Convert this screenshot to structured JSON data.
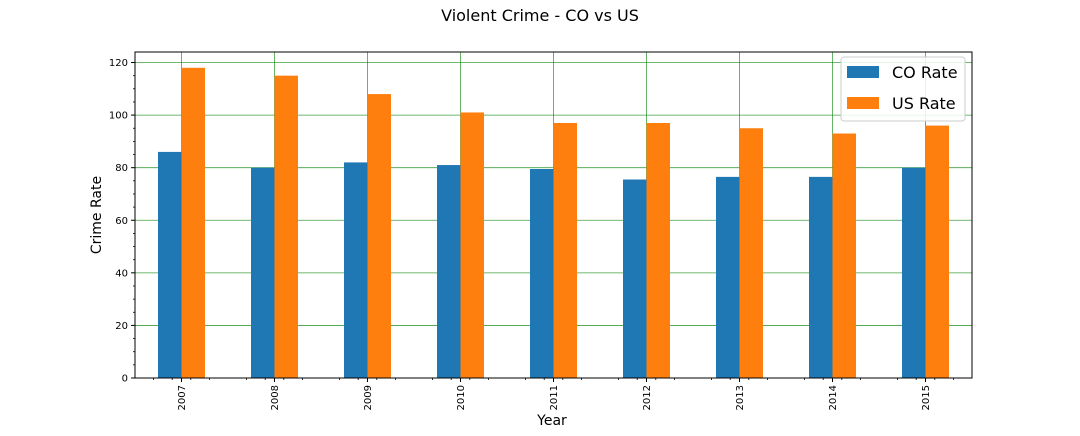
{
  "chart_data": {
    "type": "bar",
    "title": "Violent Crime - CO vs US",
    "xlabel": "Year",
    "ylabel": "Crime Rate",
    "categories": [
      "2007",
      "2008",
      "2009",
      "2010",
      "2011",
      "2012",
      "2013",
      "2014",
      "2015"
    ],
    "series": [
      {
        "name": "CO Rate",
        "color": "#1f77b4",
        "values": [
          86,
          80,
          82,
          81,
          79.5,
          75.5,
          76.5,
          76.5,
          80
        ]
      },
      {
        "name": "US Rate",
        "color": "#ff7f0e",
        "values": [
          118,
          115,
          108,
          101,
          97,
          97,
          95,
          93,
          96
        ]
      }
    ],
    "ylim": [
      0,
      124
    ],
    "yticks": [
      "0",
      "20",
      "40",
      "60",
      "80",
      "100",
      "120"
    ],
    "grid": true,
    "grid_color": "#008000",
    "legend_position": "top-right"
  }
}
